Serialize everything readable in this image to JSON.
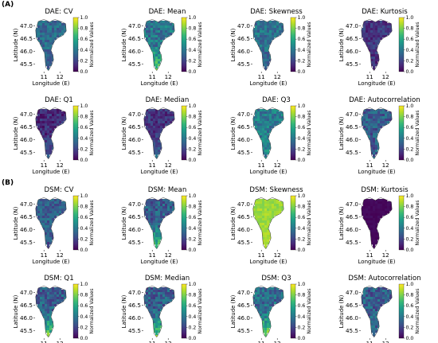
{
  "sections": [
    {
      "label": "(A)",
      "panel_rows": [
        [
          0,
          1,
          2,
          3
        ],
        [
          4,
          5,
          6,
          7
        ]
      ]
    },
    {
      "label": "(B)",
      "panel_rows": [
        [
          8,
          9,
          10,
          11
        ],
        [
          12,
          13,
          14,
          15
        ]
      ]
    }
  ],
  "colors": {
    "colormap": "viridis",
    "viridis": [
      "#440154",
      "#482878",
      "#3e4a89",
      "#31688e",
      "#26828e",
      "#1f9e89",
      "#35b779",
      "#6ece58",
      "#b5de2b",
      "#fde725"
    ]
  },
  "chart_data": [
    {
      "type": "heatmap",
      "title": "DAE: CV",
      "xlabel": "Longitude (E)",
      "ylabel": "Latitude (N)",
      "xticks": [
        "11",
        "12"
      ],
      "yticks": [
        "47.0",
        "46.5",
        "46.0",
        "45.5"
      ],
      "colorbar": {
        "label": "Normalized Values",
        "range": [
          0.0,
          1.0
        ],
        "ticks": [
          "0.0",
          "0.2",
          "0.4",
          "0.6",
          "0.8",
          "1.0"
        ]
      },
      "mean_value": 0.35,
      "south_value": 0.32,
      "spread": 0.12
    },
    {
      "type": "heatmap",
      "title": "DAE: Mean",
      "xlabel": "Longitude (E)",
      "ylabel": "Latitude (N)",
      "xticks": [
        "11",
        "12"
      ],
      "yticks": [
        "47.0",
        "46.5",
        "46.0",
        "45.5"
      ],
      "colorbar": {
        "label": "Normalized Values",
        "range": [
          0.0,
          1.0
        ],
        "ticks": [
          "0.0",
          "0.2",
          "0.4",
          "0.6",
          "0.8",
          "1.0"
        ]
      },
      "mean_value": 0.4,
      "south_value": 0.7,
      "spread": 0.15
    },
    {
      "type": "heatmap",
      "title": "DAE: Skewness",
      "xlabel": "Longitude (E)",
      "ylabel": "Latitude (N)",
      "xticks": [
        "11",
        "12"
      ],
      "yticks": [
        "47.0",
        "46.5",
        "46.0",
        "45.5"
      ],
      "colorbar": {
        "label": "Normalized Values",
        "range": [
          0.0,
          1.0
        ],
        "ticks": [
          "0.0",
          "0.2",
          "0.4",
          "0.6",
          "0.8",
          "1.0"
        ]
      },
      "mean_value": 0.38,
      "south_value": 0.32,
      "spread": 0.12
    },
    {
      "type": "heatmap",
      "title": "DAE: Kurtosis",
      "xlabel": "Longitude (E)",
      "ylabel": "Latitude (N)",
      "xticks": [
        "11",
        "12"
      ],
      "yticks": [
        "47.0",
        "46.5",
        "46.0",
        "45.5"
      ],
      "colorbar": {
        "label": "Normalized Values",
        "range": [
          0.0,
          1.0
        ],
        "ticks": [
          "0.0",
          "0.2",
          "0.4",
          "0.6",
          "0.8",
          "1.0"
        ]
      },
      "mean_value": 0.15,
      "south_value": 0.12,
      "spread": 0.1
    },
    {
      "type": "heatmap",
      "title": "DAE: Q1",
      "xlabel": "Longitude (E)",
      "ylabel": "Latitude (N)",
      "xticks": [
        "11",
        "12"
      ],
      "yticks": [
        "47.0",
        "46.5",
        "46.0",
        "45.5"
      ],
      "colorbar": {
        "label": "Normalized Values",
        "range": [
          0.0,
          1.0
        ],
        "ticks": [
          "0.0",
          "0.2",
          "0.4",
          "0.6",
          "0.8",
          "1.0"
        ]
      },
      "mean_value": 0.12,
      "south_value": 0.3,
      "spread": 0.1
    },
    {
      "type": "heatmap",
      "title": "DAE: Median",
      "xlabel": "Longitude (E)",
      "ylabel": "Latitude (N)",
      "xticks": [
        "11",
        "12"
      ],
      "yticks": [
        "47.0",
        "46.5",
        "46.0",
        "45.5"
      ],
      "colorbar": {
        "label": "Normalized Values",
        "range": [
          0.0,
          1.0
        ],
        "ticks": [
          "0.0",
          "0.2",
          "0.4",
          "0.6",
          "0.8",
          "1.0"
        ]
      },
      "mean_value": 0.15,
      "south_value": 0.35,
      "spread": 0.1
    },
    {
      "type": "heatmap",
      "title": "DAE: Q3",
      "xlabel": "Longitude (E)",
      "ylabel": "Latitude (N)",
      "xticks": [
        "11",
        "12"
      ],
      "yticks": [
        "47.0",
        "46.5",
        "46.0",
        "45.5"
      ],
      "colorbar": {
        "label": "Normalized Values",
        "range": [
          0.0,
          1.0
        ],
        "ticks": [
          "0.0",
          "0.2",
          "0.4",
          "0.6",
          "0.8",
          "1.0"
        ]
      },
      "mean_value": 0.42,
      "south_value": 0.45,
      "spread": 0.14
    },
    {
      "type": "heatmap",
      "title": "DAE: Autocorrelation",
      "xlabel": "Longitude (E)",
      "ylabel": "Latitude (N)",
      "xticks": [
        "11",
        "12"
      ],
      "yticks": [
        "47.0",
        "46.5",
        "46.0",
        "45.5"
      ],
      "colorbar": {
        "label": "Normalized Values",
        "range": [
          0.0,
          1.0
        ],
        "ticks": [
          "0.0",
          "0.2",
          "0.4",
          "0.6",
          "0.8",
          "1.0"
        ]
      },
      "mean_value": 0.3,
      "south_value": 0.3,
      "spread": 0.15
    },
    {
      "type": "heatmap",
      "title": "DSM: CV",
      "xlabel": "Longitude (E)",
      "ylabel": "Latitude (N)",
      "xticks": [
        "11",
        "12"
      ],
      "yticks": [
        "47.0",
        "46.5",
        "46.0",
        "45.5"
      ],
      "colorbar": {
        "label": "Normalized Values",
        "range": [
          0.0,
          1.0
        ],
        "ticks": [
          "0.0",
          "0.2",
          "0.4",
          "0.6",
          "0.8",
          "1.0"
        ]
      },
      "mean_value": 0.3,
      "south_value": 0.25,
      "spread": 0.12
    },
    {
      "type": "heatmap",
      "title": "DSM: Mean",
      "xlabel": "Longitude (E)",
      "ylabel": "Latitude (N)",
      "xticks": [
        "11",
        "12"
      ],
      "yticks": [
        "47.0",
        "46.5",
        "46.0",
        "45.5"
      ],
      "colorbar": {
        "label": "Normalized Values",
        "range": [
          0.0,
          1.0
        ],
        "ticks": [
          "0.0",
          "0.2",
          "0.4",
          "0.6",
          "0.8",
          "1.0"
        ]
      },
      "mean_value": 0.3,
      "south_value": 0.7,
      "spread": 0.15
    },
    {
      "type": "heatmap",
      "title": "DSM: Skewness",
      "xlabel": "Longitude (E)",
      "ylabel": "Latitude (N)",
      "xticks": [
        "11",
        "12"
      ],
      "yticks": [
        "47.0",
        "46.5",
        "46.0",
        "45.5"
      ],
      "colorbar": {
        "label": "Normalized Values",
        "range": [
          0.0,
          1.0
        ],
        "ticks": [
          "0.0",
          "0.2",
          "0.4",
          "0.6",
          "0.8",
          "1.0"
        ]
      },
      "mean_value": 0.85,
      "south_value": 0.87,
      "spread": 0.05
    },
    {
      "type": "heatmap",
      "title": "DSM: Kurtosis",
      "xlabel": "Longitude (E)",
      "ylabel": "Latitude (N)",
      "xticks": [
        "11",
        "12"
      ],
      "yticks": [
        "47.0",
        "46.5",
        "46.0",
        "45.5"
      ],
      "colorbar": {
        "label": "Normalized Values",
        "range": [
          0.0,
          1.0
        ],
        "ticks": [
          "0.0",
          "0.2",
          "0.4",
          "0.6",
          "0.8",
          "1.0"
        ]
      },
      "mean_value": 0.02,
      "south_value": 0.02,
      "spread": 0.02
    },
    {
      "type": "heatmap",
      "title": "DSM: Q1",
      "xlabel": "Longitude (E)",
      "ylabel": "Latitude (N)",
      "xticks": [
        "11",
        "12"
      ],
      "yticks": [
        "47.0",
        "46.5",
        "46.0",
        "45.5"
      ],
      "colorbar": {
        "label": "Normalized Values",
        "range": [
          0.0,
          1.0
        ],
        "ticks": [
          "0.0",
          "0.2",
          "0.4",
          "0.6",
          "0.8",
          "1.0"
        ]
      },
      "mean_value": 0.3,
      "south_value": 0.75,
      "spread": 0.15
    },
    {
      "type": "heatmap",
      "title": "DSM: Median",
      "xlabel": "Longitude (E)",
      "ylabel": "Latitude (N)",
      "xticks": [
        "11",
        "12"
      ],
      "yticks": [
        "47.0",
        "46.5",
        "46.0",
        "45.5"
      ],
      "colorbar": {
        "label": "Normalized Values",
        "range": [
          0.0,
          1.0
        ],
        "ticks": [
          "0.0",
          "0.2",
          "0.4",
          "0.6",
          "0.8",
          "1.0"
        ]
      },
      "mean_value": 0.3,
      "south_value": 0.75,
      "spread": 0.15
    },
    {
      "type": "heatmap",
      "title": "DSM: Q3",
      "xlabel": "Longitude (E)",
      "ylabel": "Latitude (N)",
      "xticks": [
        "11",
        "12"
      ],
      "yticks": [
        "47.0",
        "46.5",
        "46.0",
        "45.5"
      ],
      "colorbar": {
        "label": "Normalized Values",
        "range": [
          0.0,
          1.0
        ],
        "ticks": [
          "0.0",
          "0.2",
          "0.4",
          "0.6",
          "0.8",
          "1.0"
        ]
      },
      "mean_value": 0.35,
      "south_value": 0.85,
      "spread": 0.15
    },
    {
      "type": "heatmap",
      "title": "DSM: Autocorrelation",
      "xlabel": "Longitude (E)",
      "ylabel": "Latitude (N)",
      "xticks": [
        "11",
        "12"
      ],
      "yticks": [
        "47.0",
        "46.5",
        "46.0",
        "45.5"
      ],
      "colorbar": {
        "label": "Normalized Values",
        "range": [
          0.0,
          1.0
        ],
        "ticks": [
          "0.0",
          "0.2",
          "0.4",
          "0.6",
          "0.8",
          "1.0"
        ]
      },
      "mean_value": 0.3,
      "south_value": 0.35,
      "spread": 0.15
    }
  ]
}
